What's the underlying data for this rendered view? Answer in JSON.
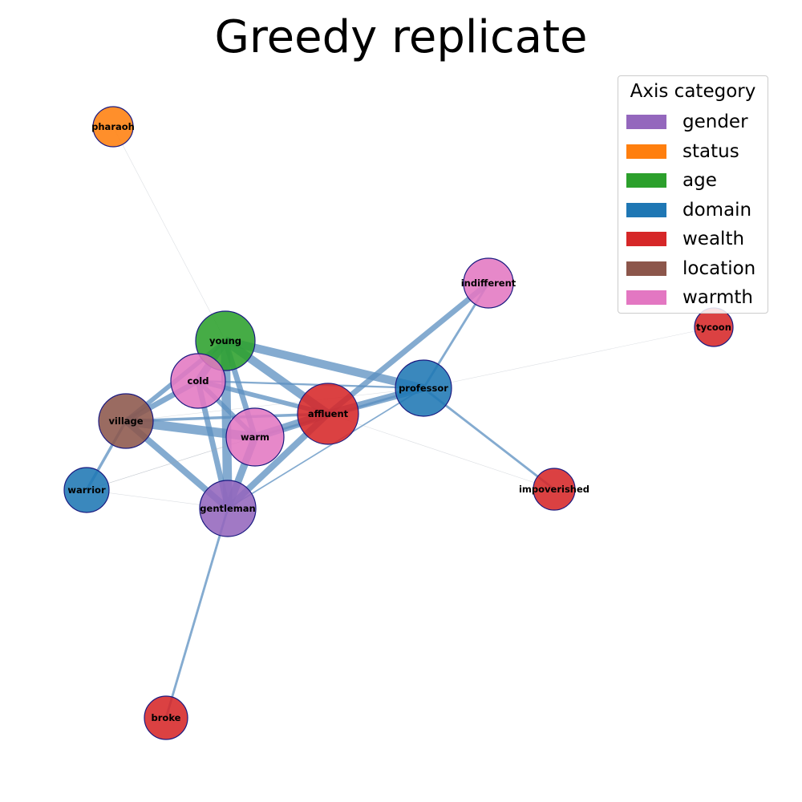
{
  "title": "Greedy replicate",
  "legend": {
    "title": "Axis category",
    "entries": [
      {
        "label": "gender",
        "color": "#9467bd"
      },
      {
        "label": "status",
        "color": "#ff7f0e"
      },
      {
        "label": "age",
        "color": "#2ca02c"
      },
      {
        "label": "domain",
        "color": "#1f77b4"
      },
      {
        "label": "wealth",
        "color": "#d62728"
      },
      {
        "label": "location",
        "color": "#8c564b"
      },
      {
        "label": "warmth",
        "color": "#e377c2"
      }
    ]
  },
  "nodes": [
    {
      "id": "pharaoh",
      "label": "pharaoh",
      "category": "status"
    },
    {
      "id": "indifferent",
      "label": "indifferent",
      "category": "warmth"
    },
    {
      "id": "tycoon",
      "label": "tycoon",
      "category": "wealth"
    },
    {
      "id": "young",
      "label": "young",
      "category": "age"
    },
    {
      "id": "cold",
      "label": "cold",
      "category": "warmth"
    },
    {
      "id": "professor",
      "label": "professor",
      "category": "domain"
    },
    {
      "id": "affluent",
      "label": "affluent",
      "category": "wealth"
    },
    {
      "id": "village",
      "label": "village",
      "category": "location"
    },
    {
      "id": "warm",
      "label": "warm",
      "category": "warmth"
    },
    {
      "id": "warrior",
      "label": "warrior",
      "category": "domain"
    },
    {
      "id": "gentleman",
      "label": "gentleman",
      "category": "gender"
    },
    {
      "id": "impoverished",
      "label": "impoverished",
      "category": "wealth"
    },
    {
      "id": "broke",
      "label": "broke",
      "category": "wealth"
    }
  ],
  "edges": [
    {
      "source": "young",
      "target": "professor",
      "weight": 9
    },
    {
      "source": "young",
      "target": "affluent",
      "weight": 9
    },
    {
      "source": "young",
      "target": "cold",
      "weight": 8
    },
    {
      "source": "young",
      "target": "village",
      "weight": 5
    },
    {
      "source": "young",
      "target": "gentleman",
      "weight": 10
    },
    {
      "source": "young",
      "target": "warm",
      "weight": 6
    },
    {
      "source": "cold",
      "target": "village",
      "weight": 6
    },
    {
      "source": "cold",
      "target": "affluent",
      "weight": 5
    },
    {
      "source": "cold",
      "target": "gentleman",
      "weight": 6
    },
    {
      "source": "cold",
      "target": "warm",
      "weight": 5
    },
    {
      "source": "cold",
      "target": "professor",
      "weight": 2
    },
    {
      "source": "village",
      "target": "warm",
      "weight": 10
    },
    {
      "source": "village",
      "target": "affluent",
      "weight": 3
    },
    {
      "source": "village",
      "target": "gentleman",
      "weight": 7
    },
    {
      "source": "village",
      "target": "warrior",
      "weight": 3
    },
    {
      "source": "village",
      "target": "professor",
      "weight": 0.3
    },
    {
      "source": "warm",
      "target": "affluent",
      "weight": 9
    },
    {
      "source": "warm",
      "target": "gentleman",
      "weight": 8
    },
    {
      "source": "warm",
      "target": "professor",
      "weight": 2.5
    },
    {
      "source": "affluent",
      "target": "professor",
      "weight": 8
    },
    {
      "source": "affluent",
      "target": "gentleman",
      "weight": 7
    },
    {
      "source": "affluent",
      "target": "indifferent",
      "weight": 6
    },
    {
      "source": "professor",
      "target": "indifferent",
      "weight": 2.5
    },
    {
      "source": "professor",
      "target": "impoverished",
      "weight": 2.5
    },
    {
      "source": "professor",
      "target": "tycoon",
      "weight": 0.2
    },
    {
      "source": "professor",
      "target": "gentleman",
      "weight": 1.5
    },
    {
      "source": "affluent",
      "target": "impoverished",
      "weight": 0.2
    },
    {
      "source": "gentleman",
      "target": "broke",
      "weight": 2.5
    },
    {
      "source": "gentleman",
      "target": "warrior",
      "weight": 0.3
    },
    {
      "source": "warrior",
      "target": "affluent",
      "weight": 0.3
    },
    {
      "source": "warrior",
      "target": "warm",
      "weight": 0.2
    },
    {
      "source": "young",
      "target": "pharaoh",
      "weight": 0.2
    }
  ]
}
